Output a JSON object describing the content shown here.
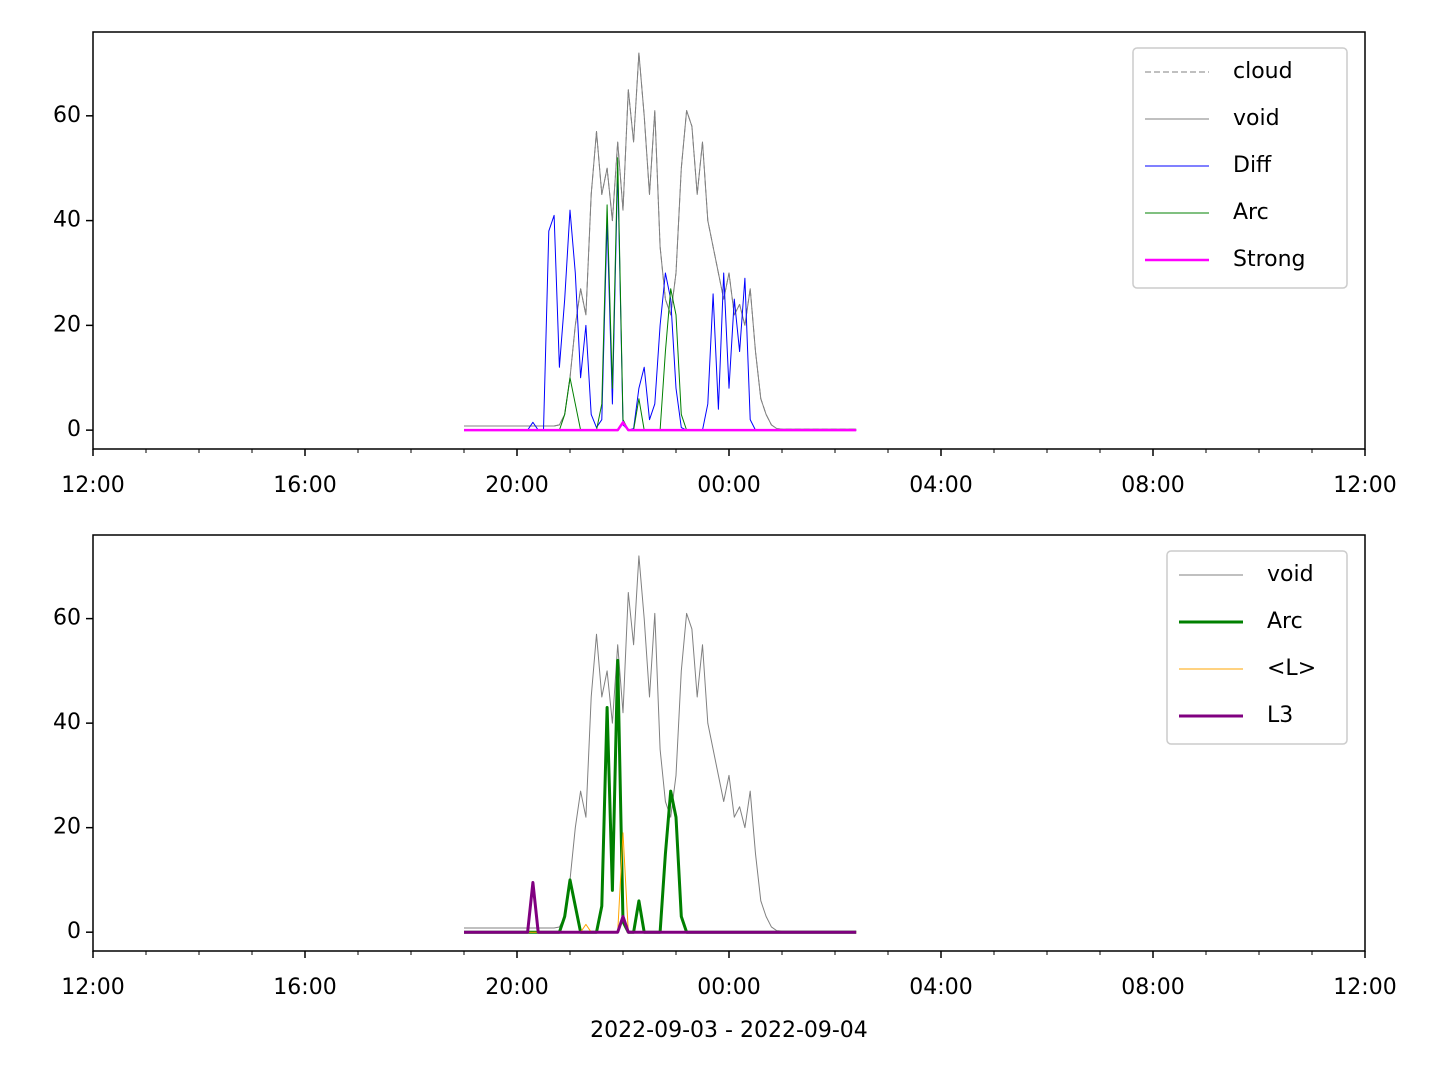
{
  "chart_data": [
    {
      "type": "line",
      "x": [
        19,
        19.1,
        19.2,
        19.3,
        19.4,
        19.5,
        19.6,
        19.7,
        19.8,
        19.9,
        20,
        20.1,
        20.2,
        20.3,
        20.4,
        20.5,
        20.6,
        20.7,
        20.8,
        20.9,
        21,
        21.1,
        21.2,
        21.3,
        21.4,
        21.5,
        21.6,
        21.7,
        21.8,
        21.9,
        22,
        22.1,
        22.2,
        22.3,
        22.4,
        22.5,
        22.6,
        22.7,
        22.8,
        22.9,
        23,
        23.1,
        23.2,
        23.3,
        23.4,
        23.5,
        23.6,
        23.7,
        23.8,
        23.9,
        24,
        24.1,
        24.2,
        24.3,
        24.4,
        24.5,
        24.6,
        24.7,
        24.8,
        24.9,
        25,
        25.1,
        25.2,
        25.3,
        25.4,
        25.5,
        25.6,
        25.7,
        25.8,
        25.9,
        26,
        26.1,
        26.2,
        26.3,
        26.4
      ],
      "xlim": [
        12,
        36
      ],
      "xticks": [
        {
          "value": 12,
          "label": "12:00"
        },
        {
          "value": 16,
          "label": "16:00"
        },
        {
          "value": 20,
          "label": "20:00"
        },
        {
          "value": 24,
          "label": "00:00"
        },
        {
          "value": 28,
          "label": "04:00"
        },
        {
          "value": 32,
          "label": "08:00"
        },
        {
          "value": 36,
          "label": "12:00"
        }
      ],
      "xminorticks": [
        13,
        14,
        15,
        17,
        18,
        19,
        21,
        22,
        23,
        25,
        26,
        27,
        29,
        30,
        31,
        33,
        34,
        35
      ],
      "ylim": [
        -3.6,
        76
      ],
      "yticks": [
        0,
        20,
        40,
        60
      ],
      "legend": "upper right",
      "series": [
        {
          "name": "cloud",
          "color": "#808080",
          "linewidth": 1,
          "linestyle": "dashed",
          "values": [
            0.8,
            0.8,
            0.8,
            0.8,
            0.8,
            0.8,
            0.8,
            0.8,
            0.8,
            0.8,
            0.8,
            0.8,
            0.8,
            0.8,
            0.8,
            0.8,
            0.8,
            0.8,
            1,
            3,
            10,
            20,
            27,
            22,
            45,
            57,
            45,
            50,
            40,
            55,
            42,
            65,
            55,
            72,
            60,
            45,
            61,
            35,
            25,
            22,
            30,
            50,
            61,
            58,
            45,
            55,
            40,
            35,
            30,
            25,
            30,
            22,
            24,
            20,
            27,
            15,
            6,
            3,
            1,
            0.3,
            0.2,
            0.2,
            0.2,
            0.2,
            0.2,
            0.2,
            0.2,
            0.2,
            0.2,
            0.2,
            0.2,
            0.2,
            0.2,
            0.2,
            0.2
          ]
        },
        {
          "name": "void",
          "color": "#808080",
          "linewidth": 1,
          "linestyle": "solid",
          "values": [
            0.8,
            0.8,
            0.8,
            0.8,
            0.8,
            0.8,
            0.8,
            0.8,
            0.8,
            0.8,
            0.8,
            0.8,
            0.8,
            0.8,
            0.8,
            0.8,
            0.8,
            0.8,
            1,
            3,
            10,
            20,
            27,
            22,
            45,
            57,
            45,
            50,
            40,
            55,
            42,
            65,
            55,
            72,
            60,
            45,
            61,
            35,
            25,
            22,
            30,
            50,
            61,
            58,
            45,
            55,
            40,
            35,
            30,
            25,
            30,
            22,
            24,
            20,
            27,
            15,
            6,
            3,
            1,
            0.3,
            0.2,
            0.2,
            0.2,
            0.2,
            0.2,
            0.2,
            0.2,
            0.2,
            0.2,
            0.2,
            0.2,
            0.2,
            0.2,
            0.2,
            0.2
          ]
        },
        {
          "name": "Diff",
          "color": "#0000ff",
          "linewidth": 1,
          "linestyle": "solid",
          "values": [
            0,
            0,
            0,
            0,
            0,
            0,
            0,
            0,
            0,
            0,
            0,
            0,
            0,
            1.5,
            0,
            0,
            38,
            41,
            12,
            25,
            42,
            30,
            10,
            20,
            3,
            0.5,
            2,
            40,
            5,
            50,
            1,
            0,
            0.3,
            8,
            12,
            2,
            5,
            20,
            30,
            25,
            8,
            0.5,
            0,
            0,
            0,
            0,
            5,
            26,
            4,
            30,
            8,
            25,
            15,
            29,
            2,
            0,
            0,
            0,
            0,
            0,
            0,
            0,
            0,
            0,
            0,
            0,
            0,
            0,
            0,
            0,
            0,
            0,
            0,
            0,
            0
          ]
        },
        {
          "name": "Arc",
          "color": "#008000",
          "linewidth": 1,
          "linestyle": "solid",
          "values": [
            0,
            0,
            0,
            0,
            0,
            0,
            0,
            0,
            0,
            0,
            0,
            0,
            0,
            0,
            0,
            0,
            0,
            0,
            0,
            3,
            10,
            5,
            0,
            0,
            0,
            0,
            5,
            43,
            8,
            52,
            2,
            0,
            0,
            6,
            0,
            0,
            0,
            0,
            15,
            27,
            22,
            3,
            0,
            0,
            0,
            0,
            0,
            0,
            0,
            0,
            0,
            0,
            0,
            0,
            0,
            0,
            0,
            0,
            0,
            0,
            0,
            0,
            0,
            0,
            0,
            0,
            0,
            0,
            0,
            0,
            0,
            0,
            0,
            0,
            0
          ]
        },
        {
          "name": "Strong",
          "color": "#ff00ff",
          "linewidth": 2.5,
          "linestyle": "solid",
          "values": [
            0,
            0,
            0,
            0,
            0,
            0,
            0,
            0,
            0,
            0,
            0,
            0,
            0,
            0,
            0,
            0,
            0,
            0,
            0,
            0,
            0,
            0,
            0,
            0,
            0,
            0,
            0,
            0,
            0,
            0,
            1.5,
            0,
            0,
            0,
            0,
            0,
            0,
            0,
            0,
            0,
            0,
            0,
            0,
            0,
            0,
            0,
            0,
            0,
            0,
            0,
            0,
            0,
            0,
            0,
            0,
            0,
            0,
            0,
            0,
            0,
            0,
            0,
            0,
            0,
            0,
            0,
            0,
            0,
            0,
            0,
            0,
            0,
            0,
            0,
            0
          ]
        }
      ]
    },
    {
      "type": "line",
      "x": [
        19,
        19.1,
        19.2,
        19.3,
        19.4,
        19.5,
        19.6,
        19.7,
        19.8,
        19.9,
        20,
        20.1,
        20.2,
        20.3,
        20.4,
        20.5,
        20.6,
        20.7,
        20.8,
        20.9,
        21,
        21.1,
        21.2,
        21.3,
        21.4,
        21.5,
        21.6,
        21.7,
        21.8,
        21.9,
        22,
        22.1,
        22.2,
        22.3,
        22.4,
        22.5,
        22.6,
        22.7,
        22.8,
        22.9,
        23,
        23.1,
        23.2,
        23.3,
        23.4,
        23.5,
        23.6,
        23.7,
        23.8,
        23.9,
        24,
        24.1,
        24.2,
        24.3,
        24.4,
        24.5,
        24.6,
        24.7,
        24.8,
        24.9,
        25,
        25.1,
        25.2,
        25.3,
        25.4,
        25.5,
        25.6,
        25.7,
        25.8,
        25.9,
        26,
        26.1,
        26.2,
        26.3,
        26.4
      ],
      "xlim": [
        12,
        36
      ],
      "xticks": [
        {
          "value": 12,
          "label": "12:00"
        },
        {
          "value": 16,
          "label": "16:00"
        },
        {
          "value": 20,
          "label": "20:00"
        },
        {
          "value": 24,
          "label": "00:00"
        },
        {
          "value": 28,
          "label": "04:00"
        },
        {
          "value": 32,
          "label": "08:00"
        },
        {
          "value": 36,
          "label": "12:00"
        }
      ],
      "xminorticks": [
        13,
        14,
        15,
        17,
        18,
        19,
        21,
        22,
        23,
        25,
        26,
        27,
        29,
        30,
        31,
        33,
        34,
        35
      ],
      "ylim": [
        -3.6,
        76
      ],
      "yticks": [
        0,
        20,
        40,
        60
      ],
      "legend": "upper right",
      "x_label": "2022-09-03 - 2022-09-04",
      "series": [
        {
          "name": "void",
          "color": "#808080",
          "linewidth": 1,
          "linestyle": "solid",
          "values": [
            0.8,
            0.8,
            0.8,
            0.8,
            0.8,
            0.8,
            0.8,
            0.8,
            0.8,
            0.8,
            0.8,
            0.8,
            0.8,
            0.8,
            0.8,
            0.8,
            0.8,
            0.8,
            1,
            3,
            10,
            20,
            27,
            22,
            45,
            57,
            45,
            50,
            40,
            55,
            42,
            65,
            55,
            72,
            60,
            45,
            61,
            35,
            25,
            22,
            30,
            50,
            61,
            58,
            45,
            55,
            40,
            35,
            30,
            25,
            30,
            22,
            24,
            20,
            27,
            15,
            6,
            3,
            1,
            0.3,
            0.2,
            0.2,
            0.2,
            0.2,
            0.2,
            0.2,
            0.2,
            0.2,
            0.2,
            0.2,
            0.2,
            0.2,
            0.2,
            0.2,
            0.2
          ]
        },
        {
          "name": "Arc",
          "color": "#008000",
          "linewidth": 3,
          "linestyle": "solid",
          "values": [
            0,
            0,
            0,
            0,
            0,
            0,
            0,
            0,
            0,
            0,
            0,
            0,
            0,
            0,
            0,
            0,
            0,
            0,
            0,
            3,
            10,
            5,
            0,
            0,
            0,
            0,
            5,
            43,
            8,
            52,
            2,
            0,
            0,
            6,
            0,
            0,
            0,
            0,
            15,
            27,
            22,
            3,
            0,
            0,
            0,
            0,
            0,
            0,
            0,
            0,
            0,
            0,
            0,
            0,
            0,
            0,
            0,
            0,
            0,
            0,
            0,
            0,
            0,
            0,
            0,
            0,
            0,
            0,
            0,
            0,
            0,
            0,
            0,
            0,
            0
          ]
        },
        {
          "name": "<L>",
          "color": "#ffa500",
          "linewidth": 1,
          "linestyle": "solid",
          "values": [
            0,
            0,
            0,
            0,
            0,
            0,
            0,
            0,
            0,
            0,
            0,
            0,
            0,
            0,
            0,
            0,
            0,
            0,
            0,
            0,
            0,
            0,
            0,
            1.5,
            0,
            0,
            0,
            0,
            0,
            0,
            19,
            0,
            0,
            0,
            0,
            0,
            0,
            0,
            0,
            0,
            0,
            0,
            0,
            0,
            0,
            0,
            0,
            0,
            0,
            0,
            0,
            0,
            0,
            0,
            0,
            0,
            0,
            0,
            0,
            0,
            0,
            0,
            0,
            0,
            0,
            0,
            0,
            0,
            0,
            0,
            0,
            0,
            0,
            0,
            0
          ]
        },
        {
          "name": "L3",
          "color": "#800080",
          "linewidth": 3,
          "linestyle": "solid",
          "values": [
            0,
            0,
            0,
            0,
            0,
            0,
            0,
            0,
            0,
            0,
            0,
            0,
            0,
            9.5,
            0,
            0,
            0,
            0,
            0,
            0,
            0,
            0,
            0,
            0,
            0,
            0,
            0,
            0,
            0,
            0,
            3,
            0,
            0,
            0,
            0,
            0,
            0,
            0,
            0,
            0,
            0,
            0,
            0,
            0,
            0,
            0,
            0,
            0,
            0,
            0,
            0,
            0,
            0,
            0,
            0,
            0,
            0,
            0,
            0,
            0,
            0,
            0,
            0,
            0,
            0,
            0,
            0,
            0,
            0,
            0,
            0,
            0,
            0,
            0,
            0
          ]
        }
      ]
    }
  ]
}
